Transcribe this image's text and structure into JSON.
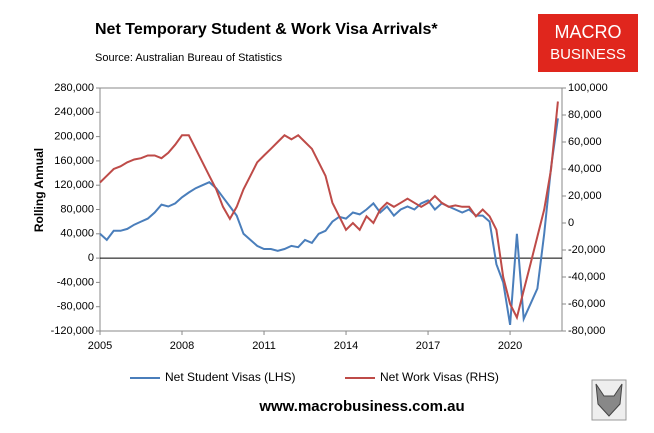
{
  "chart_data": {
    "type": "line",
    "title": "Net Temporary Student & Work Visa Arrivals*",
    "subtitle": "Source: Australian Bureau of Statistics",
    "y_label": "Rolling Annual",
    "logo": [
      "MACRO",
      "BUSINESS"
    ],
    "footer": "www.macrobusiness.com.au",
    "x": [
      2005,
      2005.25,
      2005.5,
      2005.75,
      2006,
      2006.25,
      2006.5,
      2006.75,
      2007,
      2007.25,
      2007.5,
      2007.75,
      2008,
      2008.25,
      2008.5,
      2008.75,
      2009,
      2009.25,
      2009.5,
      2009.75,
      2010,
      2010.25,
      2010.5,
      2010.75,
      2011,
      2011.25,
      2011.5,
      2011.75,
      2012,
      2012.25,
      2012.5,
      2012.75,
      2013,
      2013.25,
      2013.5,
      2013.75,
      2014,
      2014.25,
      2014.5,
      2014.75,
      2015,
      2015.25,
      2015.5,
      2015.75,
      2016,
      2016.25,
      2016.5,
      2016.75,
      2017,
      2017.25,
      2017.5,
      2017.75,
      2018,
      2018.25,
      2018.5,
      2018.75,
      2019,
      2019.25,
      2019.5,
      2019.75,
      2020,
      2020.25,
      2020.5,
      2020.75,
      2021,
      2021.25,
      2021.5,
      2021.75
    ],
    "series": [
      {
        "name": "Net Student Visas (LHS)",
        "color": "#4a7ebb",
        "axis": "y",
        "values": [
          40000,
          30000,
          45000,
          45000,
          48000,
          55000,
          60000,
          65000,
          75000,
          88000,
          85000,
          90000,
          100000,
          108000,
          115000,
          120000,
          125000,
          115000,
          100000,
          85000,
          70000,
          40000,
          30000,
          20000,
          15000,
          15000,
          12000,
          15000,
          20000,
          18000,
          30000,
          25000,
          40000,
          45000,
          60000,
          68000,
          65000,
          75000,
          72000,
          80000,
          90000,
          75000,
          85000,
          70000,
          80000,
          85000,
          80000,
          90000,
          95000,
          80000,
          90000,
          85000,
          80000,
          75000,
          80000,
          70000,
          70000,
          60000,
          -10000,
          -40000,
          -110000,
          40000,
          -100000,
          -75000,
          -50000,
          40000,
          150000,
          230000
        ]
      },
      {
        "name": "Net Work Visas (RHS)",
        "color": "#be4b48",
        "axis": "y2",
        "values": [
          30000,
          35000,
          40000,
          42000,
          45000,
          47000,
          48000,
          50000,
          50000,
          48000,
          52000,
          58000,
          65000,
          65000,
          55000,
          45000,
          35000,
          25000,
          12000,
          3000,
          12000,
          25000,
          35000,
          45000,
          50000,
          55000,
          60000,
          65000,
          62000,
          65000,
          60000,
          55000,
          45000,
          35000,
          15000,
          5000,
          -5000,
          0,
          -5000,
          5000,
          0,
          10000,
          15000,
          12000,
          15000,
          18000,
          15000,
          12000,
          15000,
          20000,
          15000,
          12000,
          13000,
          12000,
          12000,
          5000,
          10000,
          5000,
          -5000,
          -40000,
          -60000,
          -70000,
          -50000,
          -30000,
          -10000,
          10000,
          40000,
          90000
        ]
      }
    ],
    "xlim": [
      2005,
      2021.9
    ],
    "xticks": [
      2005,
      2008,
      2011,
      2014,
      2017,
      2020
    ],
    "ylim": [
      -120000,
      280000
    ],
    "yticks": [
      {
        "value": -120000,
        "label": "-120,000"
      },
      {
        "value": -80000,
        "label": "-80,000"
      },
      {
        "value": -40000,
        "label": "-40,000"
      },
      0,
      {
        "value": 40000,
        "label": "40,000"
      },
      {
        "value": 80000,
        "label": "80,000"
      },
      {
        "value": 120000,
        "label": "120,000"
      },
      {
        "value": 160000,
        "label": "160,000"
      },
      {
        "value": 200000,
        "label": "200,000"
      },
      {
        "value": 240000,
        "label": "240,000"
      },
      {
        "value": 280000,
        "label": "280,000"
      }
    ],
    "y2lim": [
      -80000,
      100000
    ],
    "y2ticks": [
      {
        "value": -80000,
        "label": "-80,000"
      },
      {
        "value": -60000,
        "label": "-60,000"
      },
      {
        "value": -40000,
        "label": "-40,000"
      },
      {
        "value": -20000,
        "label": "-20,000"
      },
      0,
      {
        "value": 20000,
        "label": "20,000"
      },
      {
        "value": 40000,
        "label": "40,000"
      },
      {
        "value": 60000,
        "label": "60,000"
      },
      {
        "value": 80000,
        "label": "80,000"
      },
      {
        "value": 100000,
        "label": "100,000"
      }
    ]
  }
}
